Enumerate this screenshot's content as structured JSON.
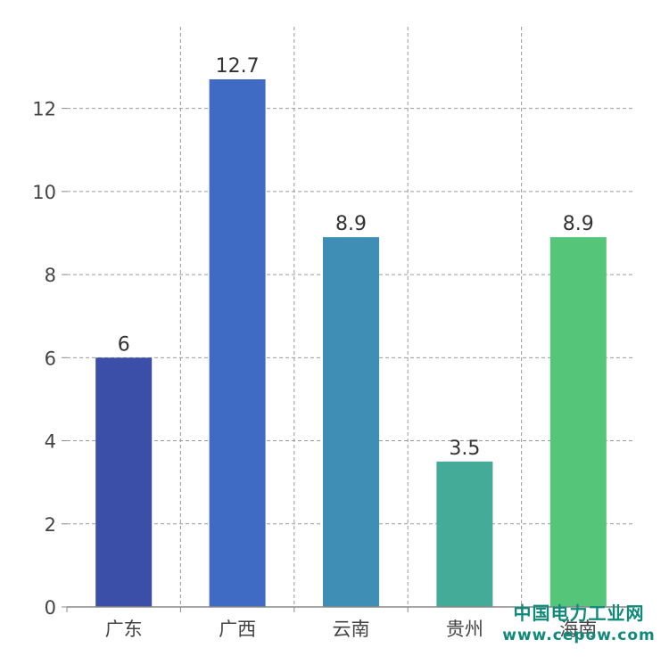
{
  "chart_data": {
    "type": "bar",
    "categories": [
      "广东",
      "广西",
      "云南",
      "贵州",
      "海南"
    ],
    "values": [
      6,
      12.7,
      8.9,
      3.5,
      8.9
    ],
    "data_labels": [
      "6",
      "12.7",
      "8.9",
      "3.5",
      "8.9"
    ],
    "y_ticks": [
      "0",
      "2",
      "4",
      "6",
      "8",
      "10",
      "12"
    ],
    "ylim": [
      0,
      12.7
    ],
    "title": "",
    "xlabel": "",
    "ylabel": "",
    "grid": true,
    "colors": [
      "#3b4ea8",
      "#3f6bc4",
      "#3e8eb6",
      "#44ab99",
      "#55c57a"
    ]
  },
  "watermark": {
    "name": "中国电力工业网",
    "url": "www.cepow.com"
  }
}
